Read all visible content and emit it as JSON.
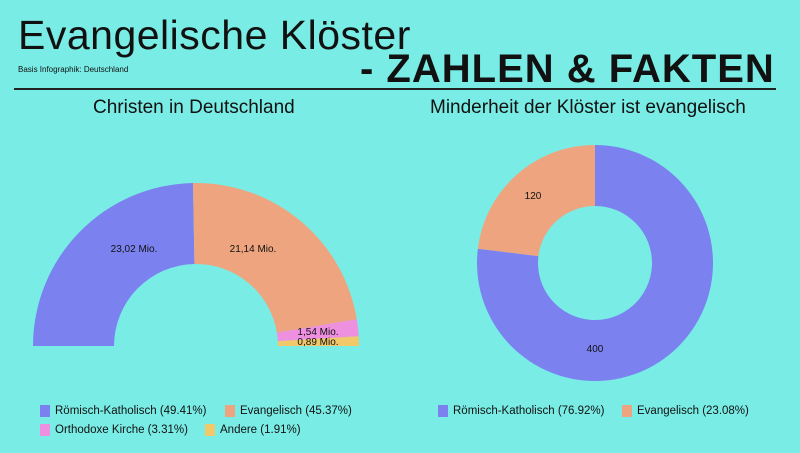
{
  "header": {
    "title": "Evangelische Klöster",
    "subtitle": "Basis Infographik: Deutschland",
    "tagline": "- ZAHLEN & FAKTEN"
  },
  "colors": {
    "background": "#79ece5",
    "blue": "#7b82ef",
    "orange": "#eea57f",
    "pink": "#ef8fe0",
    "yellow": "#f1c86a"
  },
  "chart_data": [
    {
      "type": "pie",
      "variant": "half-donut",
      "title": "Christen in Deutschland",
      "categories": [
        "Römisch-Katholisch",
        "Evangelisch",
        "Orthodoxe Kirche",
        "Andere"
      ],
      "values": [
        23.02,
        21.14,
        1.54,
        0.89
      ],
      "data_labels": [
        "23,02 Mio.",
        "21,14 Mio.",
        "1,54 Mio.",
        "0,89 Mio."
      ],
      "legend": [
        "Römisch-Katholisch (49.41%)",
        "Evangelisch (45.37%)",
        "Orthodoxe Kirche (3.31%)",
        "Andere (1.91%)"
      ],
      "colors": [
        "#7b82ef",
        "#eea57f",
        "#ef8fe0",
        "#f1c86a"
      ],
      "legend_position": "bottom"
    },
    {
      "type": "pie",
      "variant": "donut",
      "title": "Minderheit der Klöster ist evangelisch",
      "categories": [
        "Römisch-Katholisch",
        "Evangelisch"
      ],
      "values": [
        400,
        120
      ],
      "data_labels": [
        "400",
        "120"
      ],
      "legend": [
        "Römisch-Katholisch (76.92%)",
        "Evangelisch (23.08%)"
      ],
      "colors": [
        "#7b82ef",
        "#eea57f"
      ],
      "legend_position": "bottom"
    }
  ]
}
